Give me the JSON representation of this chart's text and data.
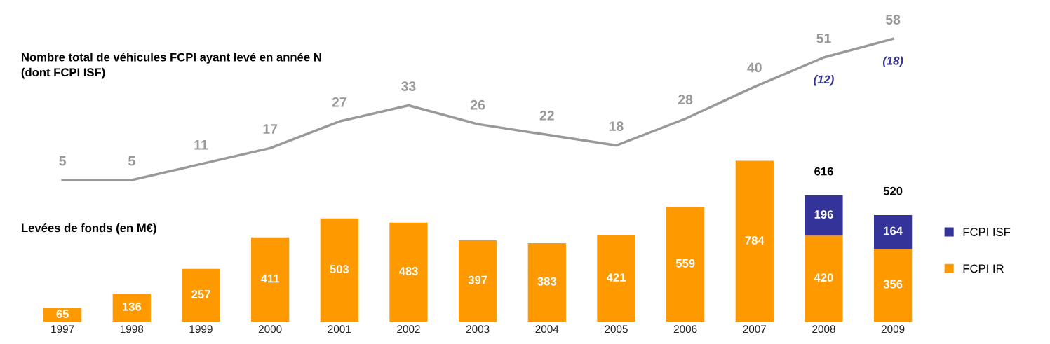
{
  "chart_data": {
    "type": "bar",
    "stacked": true,
    "data_labels": true,
    "legend": "right",
    "tick_labels": "x",
    "categories": [
      "1997",
      "1998",
      "1999",
      "2000",
      "2001",
      "2002",
      "2003",
      "2004",
      "2005",
      "2006",
      "2007",
      "2008",
      "2009"
    ],
    "series": [
      {
        "name": "FCPI IR",
        "color": "#ff9900",
        "values": [
          65,
          136,
          257,
          411,
          503,
          483,
          397,
          383,
          421,
          559,
          784,
          420,
          356
        ]
      },
      {
        "name": "FCPI ISF",
        "color": "#333399",
        "values": [
          null,
          null,
          null,
          null,
          null,
          null,
          null,
          null,
          null,
          null,
          null,
          196,
          164
        ]
      },
      {
        "type": "line",
        "axis": "y2",
        "color": "#999999",
        "values": [
          5,
          5,
          11,
          17,
          27,
          33,
          26,
          22,
          18,
          28,
          40,
          51,
          58
        ]
      }
    ],
    "totals": [
      null,
      null,
      null,
      null,
      null,
      null,
      null,
      null,
      null,
      null,
      null,
      "616",
      "520"
    ],
    "annotations": [
      "Nombre total de véhicules FCPI ayant levé en année N\n(dont FCPI ISF)",
      "Levées de fonds (en M€)",
      "(12)",
      "(18)"
    ]
  }
}
